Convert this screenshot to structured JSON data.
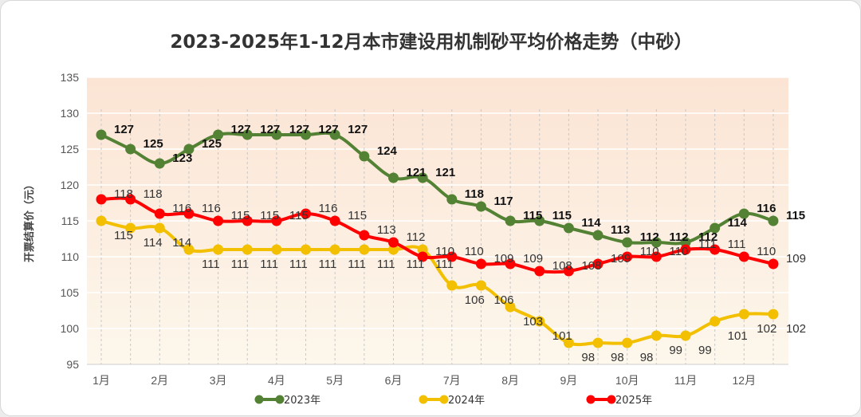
{
  "chart_data": {
    "type": "line",
    "title": "2023-2025年1-12月本市建设用机制砂平均价格走势（中砂）",
    "ylabel": "开票结算价（元）",
    "xlabel": "",
    "ylim": [
      95,
      135
    ],
    "yticks": [
      95,
      100,
      105,
      110,
      115,
      120,
      125,
      130,
      135
    ],
    "categories": [
      "1月",
      "2月",
      "3月",
      "4月",
      "5月",
      "6月",
      "7月",
      "8月",
      "9月",
      "10月",
      "11月",
      "12月"
    ],
    "x": [
      1,
      1.5,
      2,
      2.5,
      3,
      3.5,
      4,
      4.5,
      5,
      5.5,
      6,
      6.5,
      7,
      7.5,
      8,
      8.5,
      9,
      9.5,
      10,
      10.5,
      11,
      11.5,
      12,
      12.5
    ],
    "grid": true,
    "legend_position": "bottom",
    "series": [
      {
        "name": "2023年",
        "color": "#548235",
        "values": [
          127,
          125,
          123,
          125,
          127,
          127,
          127,
          127,
          127,
          124,
          121,
          121,
          118,
          117,
          115,
          115,
          114,
          113,
          112,
          112,
          112,
          114,
          116,
          115
        ]
      },
      {
        "name": "2024年",
        "color": "#f2c000",
        "values": [
          115,
          114,
          114,
          111,
          111,
          111,
          111,
          111,
          111,
          111,
          111,
          111,
          106,
          106,
          103,
          101,
          98,
          98,
          98,
          99,
          99,
          101,
          102,
          102
        ]
      },
      {
        "name": "2025年",
        "color": "#ff0000",
        "values": [
          118,
          118,
          116,
          116,
          115,
          115,
          115,
          116,
          115,
          113,
          112,
          110,
          110,
          109,
          109,
          108,
          108,
          109,
          110,
          110,
          111,
          111,
          110,
          109
        ]
      }
    ]
  }
}
